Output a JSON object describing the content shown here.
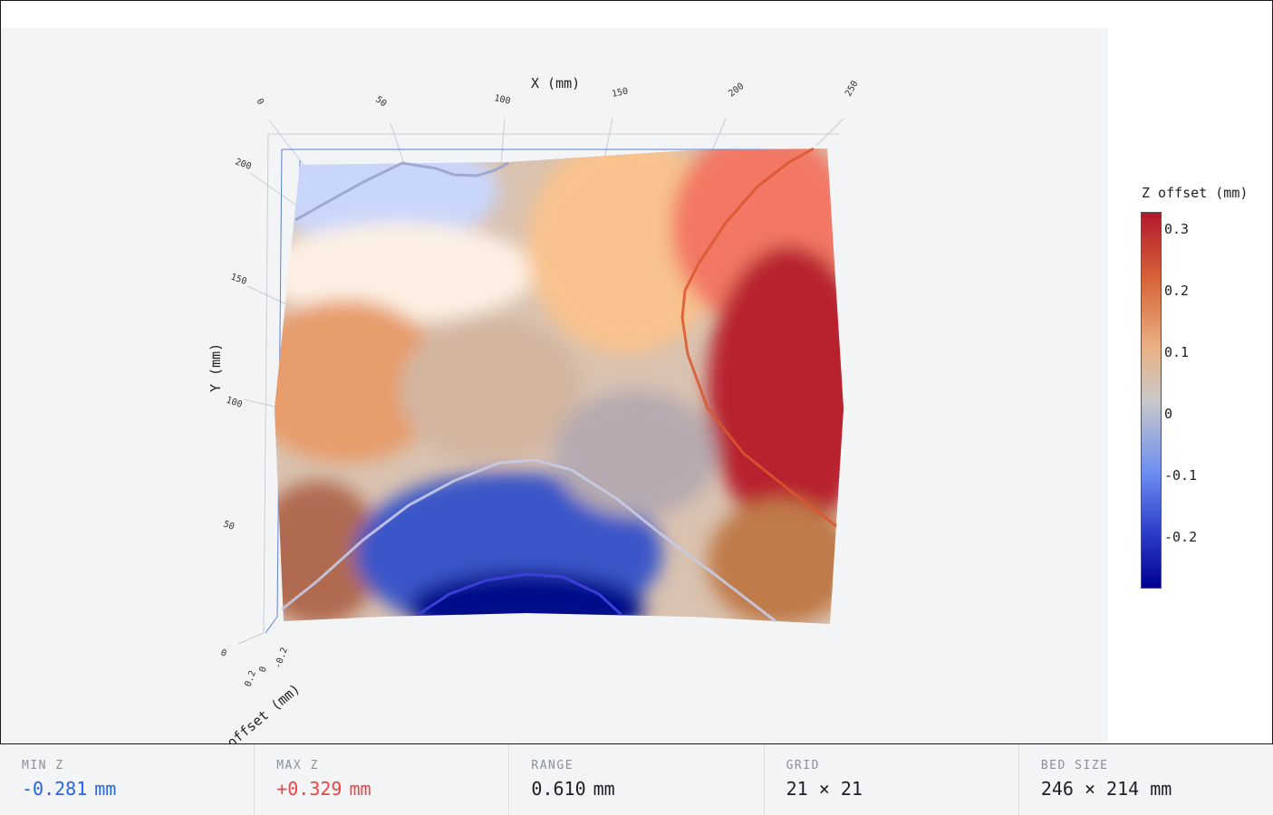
{
  "chart_data": {
    "type": "surface",
    "xlabel": "X (mm)",
    "ylabel": "Y (mm)",
    "zlabel": "offset (mm)",
    "x_ticks": [
      "0",
      "50",
      "100",
      "150",
      "200",
      "250"
    ],
    "y_ticks": [
      "0",
      "50",
      "100",
      "150",
      "200"
    ],
    "z_ticks": [
      "0.2",
      "0",
      "-0.2"
    ],
    "x_range": [
      0,
      246
    ],
    "y_range": [
      0,
      214
    ],
    "colorbar": {
      "title": "Z offset (mm)",
      "ticks": [
        "0.3",
        "0.2",
        "0.1",
        "0",
        "-0.1",
        "-0.2"
      ],
      "range": [
        -0.281,
        0.329
      ],
      "colors": [
        "#000090",
        "#2d3fc9",
        "#6e8ff0",
        "#c9c9c9",
        "#e8b183",
        "#d8653a",
        "#b2182b"
      ]
    },
    "contour_levels": [
      -0.2,
      -0.1,
      0.2
    ]
  },
  "stats": [
    {
      "label": "MIN Z",
      "value": "-0.281",
      "unit": "mm",
      "color": "#2563eb"
    },
    {
      "label": "MAX Z",
      "value": "+0.329",
      "unit": "mm",
      "color": "#ef4444"
    },
    {
      "label": "RANGE",
      "value": "0.610",
      "unit": "mm",
      "color": "#1c1f24"
    },
    {
      "label": "GRID",
      "value": "21 × 21",
      "unit": "",
      "color": "#1c1f24"
    },
    {
      "label": "BED SIZE",
      "value": "246 × 214 mm",
      "unit": "",
      "color": "#1c1f24"
    }
  ]
}
